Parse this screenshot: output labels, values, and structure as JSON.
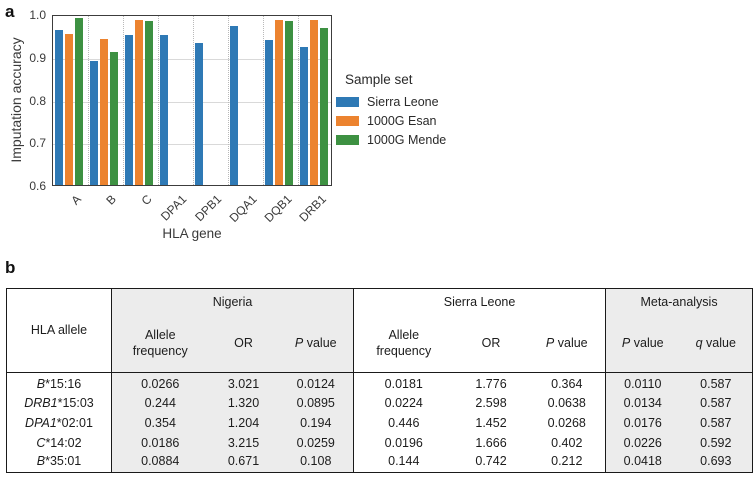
{
  "panel_a": {
    "label": "a",
    "legend_title": "Sample set"
  },
  "panel_b": {
    "label": "b"
  },
  "chart_data": [
    {
      "type": "bar",
      "title": "",
      "xlabel": "HLA gene",
      "ylabel": "Imputation accuracy",
      "ylim": [
        0.6,
        1.0
      ],
      "yticks": [
        "1.0",
        "0.9",
        "0.8",
        "0.7",
        "0.6"
      ],
      "ytick_values": [
        1.0,
        0.9,
        0.8,
        0.7,
        0.6
      ],
      "grid": "horizontal solid lines at 0.7/0.8/0.9, dotted vertical category separators",
      "legend_title": "Sample set",
      "legend_position": "right",
      "categories": [
        "A",
        "B",
        "C",
        "DPA1",
        "DPB1",
        "DQA1",
        "DQB1",
        "DRB1"
      ],
      "series": [
        {
          "name": "Sierra Leone",
          "color": "#2E79B5",
          "values": [
            0.962,
            0.891,
            0.951,
            0.95,
            0.932,
            0.973,
            0.939,
            0.923
          ]
        },
        {
          "name": "1000G Esan",
          "color": "#EC832F",
          "values": [
            0.954,
            0.941,
            0.985,
            null,
            null,
            null,
            0.985,
            0.985
          ]
        },
        {
          "name": "1000G Mende",
          "color": "#3D9142",
          "values": [
            0.99,
            0.912,
            0.983,
            null,
            null,
            null,
            0.983,
            0.968
          ]
        }
      ]
    },
    {
      "type": "table",
      "col_groups": [
        {
          "label": "",
          "span": 1,
          "shaded": false
        },
        {
          "label": "Nigeria",
          "span": 3,
          "shaded": true
        },
        {
          "label": "Sierra Leone",
          "span": 3,
          "shaded": false
        },
        {
          "label": "Meta-analysis",
          "span": 2,
          "shaded": true
        }
      ],
      "row_header": {
        "italic": "",
        "text": "HLA allele"
      },
      "sub_columns": [
        {
          "italic": "",
          "text": "Allele frequency",
          "group": 1
        },
        {
          "italic": "",
          "text": "OR",
          "group": 1
        },
        {
          "italic": "P",
          "text": " value",
          "group": 1
        },
        {
          "italic": "",
          "text": "Allele frequency",
          "group": 2
        },
        {
          "italic": "",
          "text": "OR",
          "group": 2
        },
        {
          "italic": "P",
          "text": " value",
          "group": 2
        },
        {
          "italic": "P",
          "text": " value",
          "group": 3
        },
        {
          "italic": "q",
          "text": " value",
          "group": 3
        }
      ],
      "rows": [
        {
          "allele_gene": "B",
          "allele_rest": "*15:16",
          "values": [
            "0.0266",
            "3.021",
            "0.0124",
            "0.0181",
            "1.776",
            "0.364",
            "0.0110",
            "0.587"
          ]
        },
        {
          "allele_gene": "DRB1",
          "allele_rest": "*15:03",
          "values": [
            "0.244",
            "1.320",
            "0.0895",
            "0.0224",
            "2.598",
            "0.0638",
            "0.0134",
            "0.587"
          ]
        },
        {
          "allele_gene": "DPA1",
          "allele_rest": "*02:01",
          "values": [
            "0.354",
            "1.204",
            "0.194",
            "0.446",
            "1.452",
            "0.0268",
            "0.0176",
            "0.587"
          ]
        },
        {
          "allele_gene": "C",
          "allele_rest": "*14:02",
          "values": [
            "0.0186",
            "3.215",
            "0.0259",
            "0.0196",
            "1.666",
            "0.402",
            "0.0226",
            "0.592"
          ]
        },
        {
          "allele_gene": "B",
          "allele_rest": "*35:01",
          "values": [
            "0.0884",
            "0.671",
            "0.108",
            "0.144",
            "0.742",
            "0.212",
            "0.0418",
            "0.693"
          ]
        }
      ]
    }
  ]
}
